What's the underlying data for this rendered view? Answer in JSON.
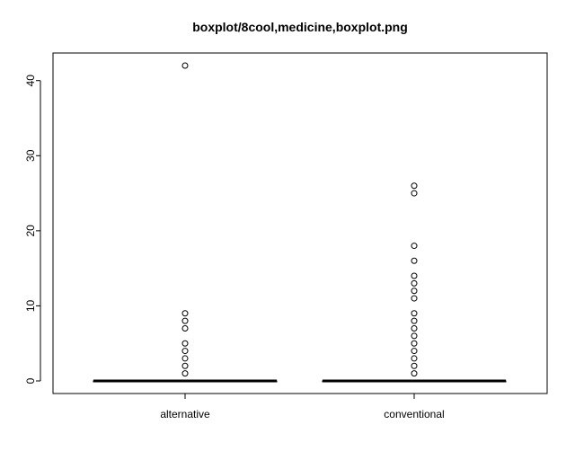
{
  "chart_data": {
    "type": "boxplot",
    "title": "boxplot/8cool,medicine,boxplot.png",
    "xlabel": "",
    "ylabel": "",
    "ylim": [
      0,
      42
    ],
    "yticks": [
      "0",
      "10",
      "20",
      "30",
      "40"
    ],
    "categories": [
      "alternative",
      "conventional"
    ],
    "series": [
      {
        "category": "alternative",
        "min": 0,
        "q1": 0,
        "median": 0,
        "q3": 0,
        "max": 0,
        "outliers": [
          1,
          2,
          3,
          4,
          5,
          7,
          8,
          9,
          42
        ]
      },
      {
        "category": "conventional",
        "min": 0,
        "q1": 0,
        "median": 0,
        "q3": 0,
        "max": 0,
        "outliers": [
          1,
          2,
          3,
          4,
          5,
          6,
          7,
          8,
          9,
          11,
          12,
          13,
          14,
          16,
          18,
          25,
          26
        ]
      }
    ],
    "grid": false,
    "legend": "none",
    "colors": {
      "axis": "#000000",
      "box": "#000000",
      "background": "#ffffff"
    }
  }
}
